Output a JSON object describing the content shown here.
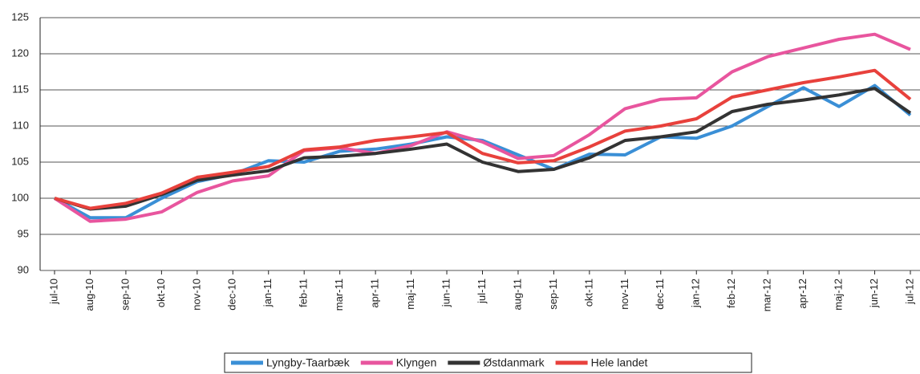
{
  "chart_data": {
    "type": "line",
    "categories": [
      "jul-10",
      "aug-10",
      "sep-10",
      "okt-10",
      "nov-10",
      "dec-10",
      "jan-11",
      "feb-11",
      "mar-11",
      "apr-11",
      "maj-11",
      "jun-11",
      "jul-11",
      "aug-11",
      "sep-11",
      "okt-11",
      "nov-11",
      "dec-11",
      "jan-12",
      "feb-12",
      "mar-12",
      "apr-12",
      "maj-12",
      "jun-12",
      "jul-12"
    ],
    "series": [
      {
        "name": "Lyngby-Taarbæk",
        "color": "#3a8fd6",
        "values": [
          100,
          97.3,
          97.3,
          100,
          102.3,
          103.3,
          105.2,
          105,
          106.5,
          106.8,
          107.5,
          108.5,
          108,
          106,
          104,
          106.1,
          106,
          108.5,
          108.3,
          110,
          112.7,
          115.3,
          112.7,
          115.6,
          111.5
        ]
      },
      {
        "name": "Klyngen",
        "color": "#e8559e",
        "values": [
          100,
          96.8,
          97.1,
          98.1,
          100.8,
          102.4,
          103.1,
          106.6,
          107,
          106.2,
          107.3,
          109.2,
          107.8,
          105.5,
          105.9,
          108.8,
          112.4,
          113.7,
          113.9,
          117.5,
          119.6,
          120.8,
          122,
          122.7,
          120.6
        ]
      },
      {
        "name": "Østdanmark",
        "color": "#333333",
        "values": [
          100,
          98.5,
          98.9,
          100.5,
          102.5,
          103.2,
          103.8,
          105.6,
          105.8,
          106.2,
          106.8,
          107.5,
          105,
          103.7,
          104,
          105.6,
          108,
          108.5,
          109.2,
          112,
          113,
          113.6,
          114.3,
          115.2,
          111.8
        ]
      },
      {
        "name": "Hele landet",
        "color": "#e8413c",
        "values": [
          100,
          98.6,
          99.3,
          100.7,
          102.9,
          103.6,
          104.4,
          106.7,
          107.1,
          108,
          108.5,
          109.1,
          106.2,
          104.9,
          105.2,
          107.1,
          109.3,
          110,
          111,
          114,
          115,
          116,
          116.8,
          117.7,
          113.7
        ]
      }
    ],
    "ylim": [
      90,
      125
    ],
    "yticks": [
      90,
      95,
      100,
      105,
      110,
      115,
      120,
      125
    ],
    "grid": true,
    "legend": "bottom"
  }
}
